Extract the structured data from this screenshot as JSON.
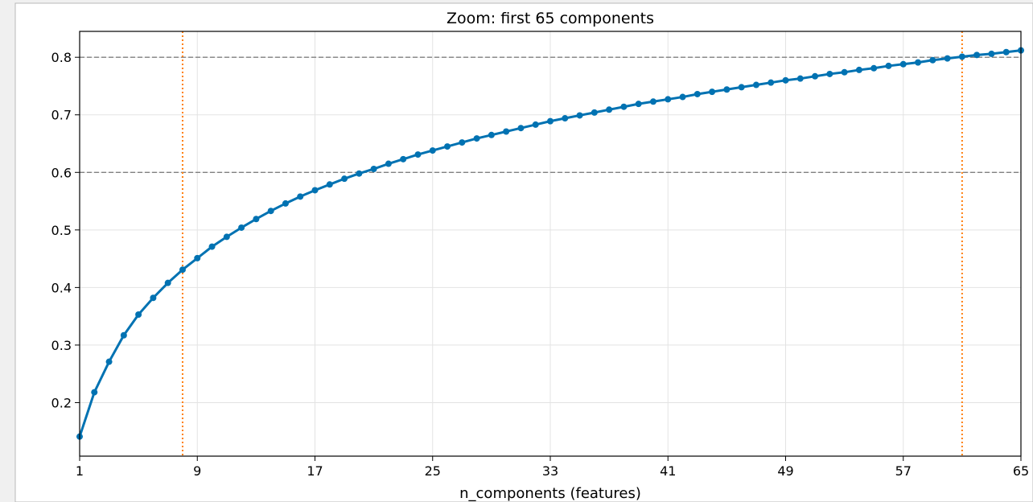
{
  "chart_data": {
    "type": "line",
    "title": "Zoom: first 65 components",
    "xlabel": "n_components (features)",
    "ylabel": "",
    "xlim": [
      1,
      65
    ],
    "ylim": [
      0.107,
      0.845
    ],
    "x_ticks": [
      1,
      9,
      17,
      25,
      33,
      41,
      49,
      57,
      65
    ],
    "y_ticks": [
      0.2,
      0.3,
      0.4,
      0.5,
      0.6,
      0.7,
      0.8
    ],
    "y_tick_labels": [
      "0.2",
      "0.3",
      "0.4",
      "0.5",
      "0.6",
      "0.7",
      "0.8"
    ],
    "grid": true,
    "horizontal_lines": [
      {
        "y": 0.6,
        "style": "dashed",
        "color": "#808080"
      },
      {
        "y": 0.8,
        "style": "dashed",
        "color": "#808080"
      }
    ],
    "vertical_lines": [
      {
        "x": 8,
        "style": "dotted",
        "color": "#ff7f0e"
      },
      {
        "x": 61,
        "style": "dotted",
        "color": "#ff7f0e"
      }
    ],
    "series": [
      {
        "color": "#0072b2",
        "marker": "circle",
        "x": [
          1,
          2,
          3,
          4,
          5,
          6,
          7,
          8,
          9,
          10,
          11,
          12,
          13,
          14,
          15,
          16,
          17,
          18,
          19,
          20,
          21,
          22,
          23,
          24,
          25,
          26,
          27,
          28,
          29,
          30,
          31,
          32,
          33,
          34,
          35,
          36,
          37,
          38,
          39,
          40,
          41,
          42,
          43,
          44,
          45,
          46,
          47,
          48,
          49,
          50,
          51,
          52,
          53,
          54,
          55,
          56,
          57,
          58,
          59,
          60,
          61,
          62,
          63,
          64,
          65
        ],
        "values": [
          0.141,
          0.218,
          0.271,
          0.317,
          0.353,
          0.382,
          0.408,
          0.431,
          0.451,
          0.471,
          0.488,
          0.504,
          0.519,
          0.533,
          0.546,
          0.558,
          0.569,
          0.579,
          0.589,
          0.598,
          0.606,
          0.615,
          0.623,
          0.631,
          0.638,
          0.645,
          0.652,
          0.659,
          0.665,
          0.671,
          0.677,
          0.683,
          0.689,
          0.694,
          0.699,
          0.704,
          0.709,
          0.714,
          0.719,
          0.723,
          0.727,
          0.731,
          0.736,
          0.74,
          0.744,
          0.748,
          0.752,
          0.756,
          0.76,
          0.763,
          0.767,
          0.771,
          0.774,
          0.778,
          0.781,
          0.785,
          0.788,
          0.791,
          0.795,
          0.798,
          0.801,
          0.804,
          0.806,
          0.809,
          0.812
        ]
      }
    ]
  }
}
